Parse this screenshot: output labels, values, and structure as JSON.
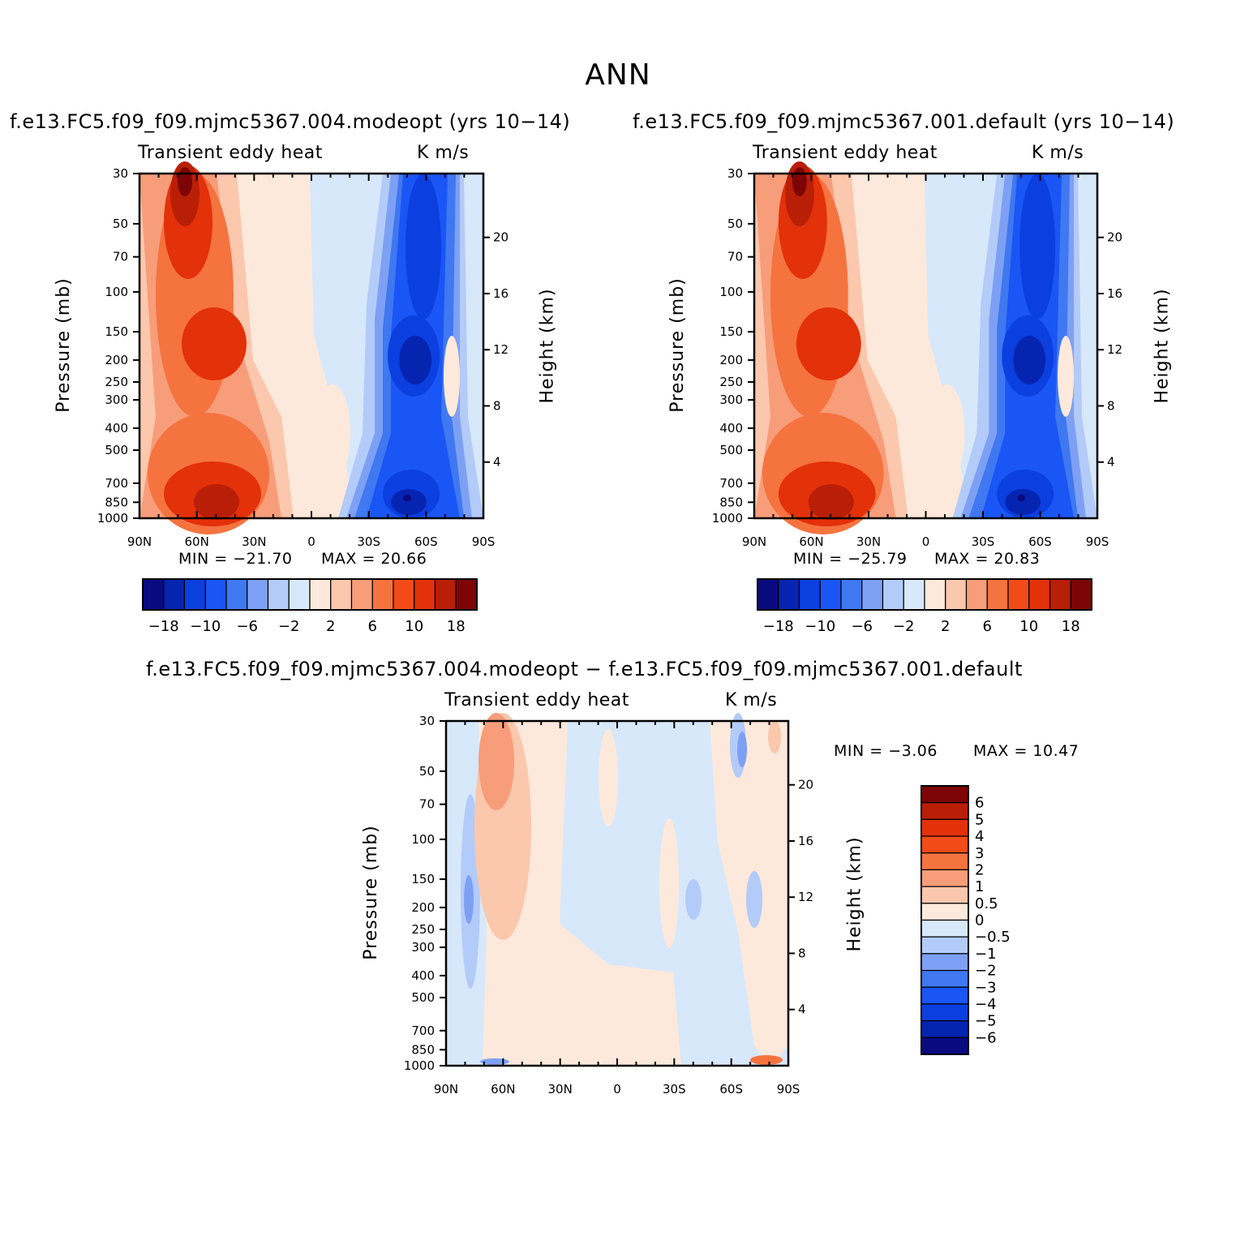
{
  "figure": {
    "title": "ANN"
  },
  "palette": {
    "abs_colors": [
      "#0a0a80",
      "#0524b0",
      "#0b3fe0",
      "#1a55f6",
      "#3f78f0",
      "#7ea0f4",
      "#b3cbf8",
      "#d8e8fb",
      "#fde9db",
      "#fbc7ad",
      "#f79d7a",
      "#f5733f",
      "#f24a18",
      "#e3310a",
      "#b91e06",
      "#7d0505"
    ],
    "diff_colors": [
      "#0a0a80",
      "#0524b0",
      "#0b3fe0",
      "#1a55f6",
      "#3f78f0",
      "#7ea0f4",
      "#b3cbf8",
      "#d8e8fb",
      "#fde9db",
      "#fbc7ad",
      "#f79d7a",
      "#f5733f",
      "#f24a18",
      "#e3310a",
      "#b91e06",
      "#7d0505"
    ]
  },
  "chart_data": [
    {
      "type": "heatmap",
      "title": "f.e13.FC5.f09_f09.mjmc5367.004.modeopt (yrs 10−14)",
      "left_string": "Transient eddy heat",
      "right_string": "K m/s",
      "ylabel": "Pressure (mb)",
      "ylabel2": "Height (km)",
      "x_ticks": [
        "90N",
        "60N",
        "30N",
        "0",
        "30S",
        "60S",
        "90S"
      ],
      "y_ticks": [
        "30",
        "50",
        "70",
        "100",
        "150",
        "200",
        "250",
        "300",
        "400",
        "500",
        "700",
        "850",
        "1000"
      ],
      "y2_ticks": [
        "20",
        "16",
        "12",
        "8",
        "4"
      ],
      "min_label": "MIN = −21.70",
      "max_label": "MAX =  20.66",
      "colorbar_labels": [
        "−18",
        "−10",
        "−6",
        "−2",
        "2",
        "6",
        "10",
        "18"
      ]
    },
    {
      "type": "heatmap",
      "title": "f.e13.FC5.f09_f09.mjmc5367.001.default (yrs 10−14)",
      "left_string": "Transient eddy heat",
      "right_string": "K m/s",
      "ylabel": "Pressure (mb)",
      "ylabel2": "Height (km)",
      "x_ticks": [
        "90N",
        "60N",
        "30N",
        "0",
        "30S",
        "60S",
        "90S"
      ],
      "y_ticks": [
        "30",
        "50",
        "70",
        "100",
        "150",
        "200",
        "250",
        "300",
        "400",
        "500",
        "700",
        "850",
        "1000"
      ],
      "y2_ticks": [
        "20",
        "16",
        "12",
        "8",
        "4"
      ],
      "min_label": "MIN = −25.79",
      "max_label": "MAX =  20.83",
      "colorbar_labels": [
        "−18",
        "−10",
        "−6",
        "−2",
        "2",
        "6",
        "10",
        "18"
      ]
    },
    {
      "type": "heatmap",
      "title": "f.e13.FC5.f09_f09.mjmc5367.004.modeopt − f.e13.FC5.f09_f09.mjmc5367.001.default",
      "left_string": "Transient eddy heat",
      "right_string": "K m/s",
      "ylabel": "Pressure (mb)",
      "ylabel2": "Height (km)",
      "x_ticks": [
        "90N",
        "60N",
        "30N",
        "0",
        "30S",
        "60S",
        "90S"
      ],
      "y_ticks": [
        "30",
        "50",
        "70",
        "100",
        "150",
        "200",
        "250",
        "300",
        "400",
        "500",
        "700",
        "850",
        "1000"
      ],
      "y2_ticks": [
        "20",
        "16",
        "12",
        "8",
        "4"
      ],
      "min_label": "MIN =   −3.06",
      "max_label": "MAX =   10.47",
      "colorbar_labels": [
        "6",
        "5",
        "4",
        "3",
        "2",
        "1",
        "0.5",
        "0",
        "−0.5",
        "−1",
        "−2",
        "−3",
        "−4",
        "−5",
        "−6"
      ]
    }
  ]
}
